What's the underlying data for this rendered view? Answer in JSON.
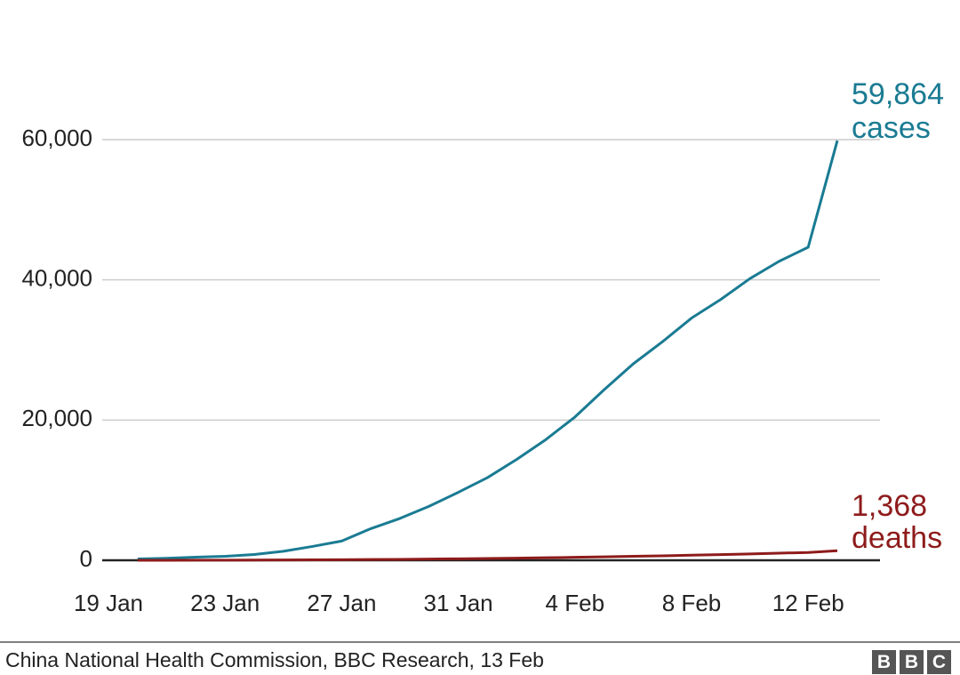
{
  "chart_data": {
    "type": "line",
    "categories": [
      "19 Jan",
      null,
      null,
      null,
      "23 Jan",
      null,
      null,
      null,
      "27 Jan",
      null,
      null,
      null,
      "31 Jan",
      null,
      null,
      null,
      "4 Feb",
      null,
      null,
      null,
      "8 Feb",
      null,
      null,
      null,
      "12 Feb",
      null
    ],
    "series": [
      {
        "name": "cases",
        "color": "#1a7b93",
        "values": [
          null,
          198,
          291,
          440,
          571,
          830,
          1287,
          1975,
          2744,
          4515,
          5974,
          7711,
          9692,
          11791,
          14380,
          17205,
          20438,
          24324,
          28018,
          31161,
          34546,
          37198,
          40171,
          42638,
          44653,
          59864
        ]
      },
      {
        "name": "deaths",
        "color": "#8e1b1b",
        "values": [
          null,
          4,
          6,
          9,
          17,
          25,
          41,
          56,
          80,
          106,
          132,
          170,
          213,
          259,
          304,
          361,
          425,
          490,
          563,
          636,
          722,
          811,
          908,
          1016,
          1113,
          1368
        ]
      }
    ],
    "annotations": [
      "59,864",
      "cases",
      "1,368",
      "deaths"
    ],
    "ylim": [
      0,
      66000
    ],
    "yticks": [
      0,
      {
        "value": 20000,
        "label": "20,000"
      },
      {
        "value": 40000,
        "label": "40,000"
      },
      {
        "value": 60000,
        "label": "60,000"
      }
    ],
    "grid": true,
    "source": "China National Health Commission, BBC Research, 13 Feb",
    "logo": [
      "B",
      "B",
      "C"
    ]
  }
}
